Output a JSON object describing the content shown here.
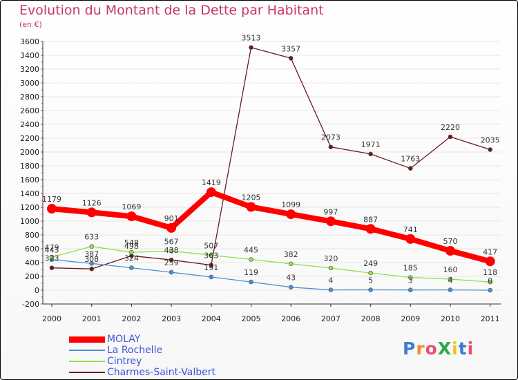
{
  "chart_data": {
    "type": "line",
    "title": "Evolution du Montant de la Dette par Habitant",
    "subtitle": "(en €)",
    "x": [
      "2000",
      "2001",
      "2002",
      "2003",
      "2004",
      "2005",
      "2006",
      "2007",
      "2008",
      "2009",
      "2010",
      "2011"
    ],
    "yticks": [
      "-200",
      "0",
      "200",
      "400",
      "600",
      "800",
      "1000",
      "1200",
      "1400",
      "1600",
      "1800",
      "2000",
      "2200",
      "2400",
      "2600",
      "2800",
      "3000",
      "3200",
      "3400",
      "3600"
    ],
    "ylim": [
      -200,
      3600
    ],
    "series": [
      {
        "name": "MOLAY",
        "color": "#ff0000",
        "values": [
          1179,
          1126,
          1069,
          901,
          1419,
          1205,
          1099,
          997,
          887,
          741,
          570,
          417
        ]
      },
      {
        "name": "La Rochelle",
        "color": "#4c8fd0",
        "values": [
          443,
          387,
          324,
          259,
          191,
          119,
          43,
          4,
          5,
          3,
          4,
          0
        ]
      },
      {
        "name": "Cintrey",
        "color": "#8fe04a",
        "values": [
          479,
          633,
          548,
          567,
          507,
          445,
          382,
          320,
          249,
          185,
          160,
          118
        ]
      },
      {
        "name": "Charmes-Saint-Valbert",
        "color": "#6b1a1a",
        "values": [
          323,
          308,
          498,
          438,
          363,
          3513,
          3357,
          2073,
          1971,
          1763,
          2220,
          2035
        ]
      }
    ]
  },
  "labels": {
    "s0": [
      "1179",
      "1126",
      "1069",
      "901",
      "1419",
      "1205",
      "1099",
      "997",
      "887",
      "741",
      "570",
      "417"
    ],
    "s1": [
      "443",
      "387",
      "324",
      "259",
      "191",
      "119",
      "43",
      "4",
      "5",
      "3",
      "4",
      "0"
    ],
    "s2": [
      "479",
      "633",
      "548",
      "567",
      "507",
      "445",
      "382",
      "320",
      "249",
      "185",
      "160",
      "118"
    ],
    "s3": [
      "323",
      "308",
      "498",
      "438",
      "363",
      "3513",
      "3357",
      "2073",
      "1971",
      "1763",
      "2220",
      "2035"
    ]
  },
  "logo": "ProXiti"
}
